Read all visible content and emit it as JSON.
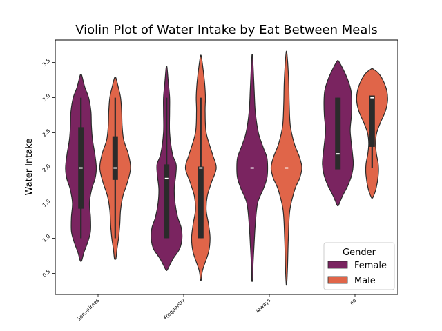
{
  "chart_data": {
    "type": "violin",
    "title": "Violin Plot of Water Intake by Eat Between Meals",
    "xlabel": "",
    "ylabel": "Water Intake",
    "categories": [
      "Sometimes",
      "Frequently",
      "Always",
      "no"
    ],
    "yticks": [
      "0.5",
      "1.0",
      "1.5",
      "2.0",
      "2.5",
      "3.0",
      "3.5"
    ],
    "ylim": [
      0.2,
      3.82
    ],
    "legend": {
      "title": "Gender",
      "placement": "lower-right"
    },
    "colors": {
      "Female": "#7a2460",
      "Male": "#e06549",
      "box": "#2b2b2b",
      "median": "#ffffff"
    },
    "series": [
      {
        "name": "Female",
        "violins": [
          {
            "category": "Sometimes",
            "min": 0.68,
            "max": 3.32,
            "box": [
              1.0,
              1.42,
              2.0,
              2.58,
              3.0
            ],
            "density": [
              [
                0.68,
                0.05
              ],
              [
                0.8,
                0.2
              ],
              [
                0.95,
                0.45
              ],
              [
                1.1,
                0.62
              ],
              [
                1.3,
                0.62
              ],
              [
                1.5,
                0.55
              ],
              [
                1.7,
                0.7
              ],
              [
                1.85,
                0.92
              ],
              [
                2.0,
                1.0
              ],
              [
                2.2,
                0.9
              ],
              [
                2.4,
                0.75
              ],
              [
                2.6,
                0.68
              ],
              [
                2.8,
                0.65
              ],
              [
                3.0,
                0.5
              ],
              [
                3.15,
                0.25
              ],
              [
                3.32,
                0.05
              ]
            ]
          },
          {
            "category": "Frequently",
            "min": 0.55,
            "max": 3.43,
            "box": [
              1.0,
              1.0,
              1.85,
              2.05,
              3.0
            ],
            "density": [
              [
                0.55,
                0.05
              ],
              [
                0.7,
                0.4
              ],
              [
                0.85,
                0.85
              ],
              [
                1.0,
                1.0
              ],
              [
                1.15,
                0.95
              ],
              [
                1.3,
                0.72
              ],
              [
                1.5,
                0.55
              ],
              [
                1.7,
                0.5
              ],
              [
                1.9,
                0.6
              ],
              [
                2.05,
                0.62
              ],
              [
                2.2,
                0.38
              ],
              [
                2.5,
                0.2
              ],
              [
                2.8,
                0.2
              ],
              [
                3.0,
                0.2
              ],
              [
                3.2,
                0.12
              ],
              [
                3.43,
                0.03
              ]
            ]
          },
          {
            "category": "Always",
            "min": 0.4,
            "max": 3.6,
            "box": [
              2.0,
              2.0,
              2.0,
              2.0,
              2.0
            ],
            "density": [
              [
                0.4,
                0.03
              ],
              [
                0.6,
                0.05
              ],
              [
                0.9,
                0.12
              ],
              [
                1.2,
                0.2
              ],
              [
                1.5,
                0.35
              ],
              [
                1.7,
                0.72
              ],
              [
                1.85,
                0.95
              ],
              [
                2.0,
                1.0
              ],
              [
                2.15,
                0.95
              ],
              [
                2.3,
                0.7
              ],
              [
                2.5,
                0.4
              ],
              [
                2.8,
                0.2
              ],
              [
                3.1,
                0.13
              ],
              [
                3.4,
                0.07
              ],
              [
                3.6,
                0.02
              ]
            ]
          },
          {
            "category": "no",
            "min": 1.47,
            "max": 3.52,
            "box": [
              1.98,
              1.98,
              2.2,
              3.0,
              3.0
            ],
            "density": [
              [
                1.47,
                0.05
              ],
              [
                1.6,
                0.3
              ],
              [
                1.75,
                0.65
              ],
              [
                1.9,
                0.9
              ],
              [
                2.05,
                1.0
              ],
              [
                2.2,
                0.95
              ],
              [
                2.4,
                0.85
              ],
              [
                2.55,
                0.8
              ],
              [
                2.75,
                0.88
              ],
              [
                2.95,
                0.9
              ],
              [
                3.1,
                0.85
              ],
              [
                3.25,
                0.65
              ],
              [
                3.4,
                0.35
              ],
              [
                3.52,
                0.05
              ]
            ]
          }
        ]
      },
      {
        "name": "Male",
        "violins": [
          {
            "category": "Sometimes",
            "min": 0.71,
            "max": 3.28,
            "box": [
              1.0,
              1.83,
              2.0,
              2.45,
              3.0
            ],
            "density": [
              [
                0.71,
                0.05
              ],
              [
                0.85,
                0.12
              ],
              [
                1.0,
                0.22
              ],
              [
                1.2,
                0.3
              ],
              [
                1.4,
                0.35
              ],
              [
                1.6,
                0.5
              ],
              [
                1.8,
                0.8
              ],
              [
                2.0,
                1.0
              ],
              [
                2.2,
                0.85
              ],
              [
                2.4,
                0.55
              ],
              [
                2.6,
                0.45
              ],
              [
                2.8,
                0.42
              ],
              [
                3.0,
                0.35
              ],
              [
                3.15,
                0.2
              ],
              [
                3.28,
                0.05
              ]
            ]
          },
          {
            "category": "Frequently",
            "min": 0.41,
            "max": 3.59,
            "box": [
              1.0,
              1.0,
              2.0,
              2.02,
              3.0
            ],
            "density": [
              [
                0.41,
                0.03
              ],
              [
                0.55,
                0.12
              ],
              [
                0.8,
                0.5
              ],
              [
                1.0,
                0.6
              ],
              [
                1.2,
                0.5
              ],
              [
                1.4,
                0.35
              ],
              [
                1.6,
                0.42
              ],
              [
                1.8,
                0.7
              ],
              [
                2.0,
                1.0
              ],
              [
                2.2,
                0.75
              ],
              [
                2.5,
                0.35
              ],
              [
                2.8,
                0.28
              ],
              [
                3.0,
                0.3
              ],
              [
                3.2,
                0.25
              ],
              [
                3.4,
                0.15
              ],
              [
                3.59,
                0.03
              ]
            ]
          },
          {
            "category": "Always",
            "min": 0.35,
            "max": 3.65,
            "box": [
              2.0,
              2.0,
              2.0,
              2.0,
              2.0
            ],
            "density": [
              [
                0.35,
                0.02
              ],
              [
                0.6,
                0.07
              ],
              [
                1.0,
                0.12
              ],
              [
                1.4,
                0.22
              ],
              [
                1.7,
                0.55
              ],
              [
                1.85,
                0.85
              ],
              [
                2.0,
                1.0
              ],
              [
                2.15,
                0.85
              ],
              [
                2.35,
                0.5
              ],
              [
                2.6,
                0.25
              ],
              [
                2.9,
                0.18
              ],
              [
                3.2,
                0.15
              ],
              [
                3.5,
                0.08
              ],
              [
                3.65,
                0.02
              ]
            ]
          },
          {
            "category": "no",
            "min": 1.58,
            "max": 3.41,
            "box": [
              2.0,
              2.3,
              3.0,
              3.03,
              3.03
            ],
            "density": [
              [
                1.58,
                0.05
              ],
              [
                1.7,
                0.25
              ],
              [
                1.9,
                0.4
              ],
              [
                2.05,
                0.4
              ],
              [
                2.2,
                0.28
              ],
              [
                2.35,
                0.22
              ],
              [
                2.5,
                0.3
              ],
              [
                2.65,
                0.55
              ],
              [
                2.8,
                0.85
              ],
              [
                2.95,
                1.0
              ],
              [
                3.1,
                0.95
              ],
              [
                3.25,
                0.7
              ],
              [
                3.35,
                0.4
              ],
              [
                3.41,
                0.05
              ]
            ]
          }
        ]
      }
    ]
  }
}
